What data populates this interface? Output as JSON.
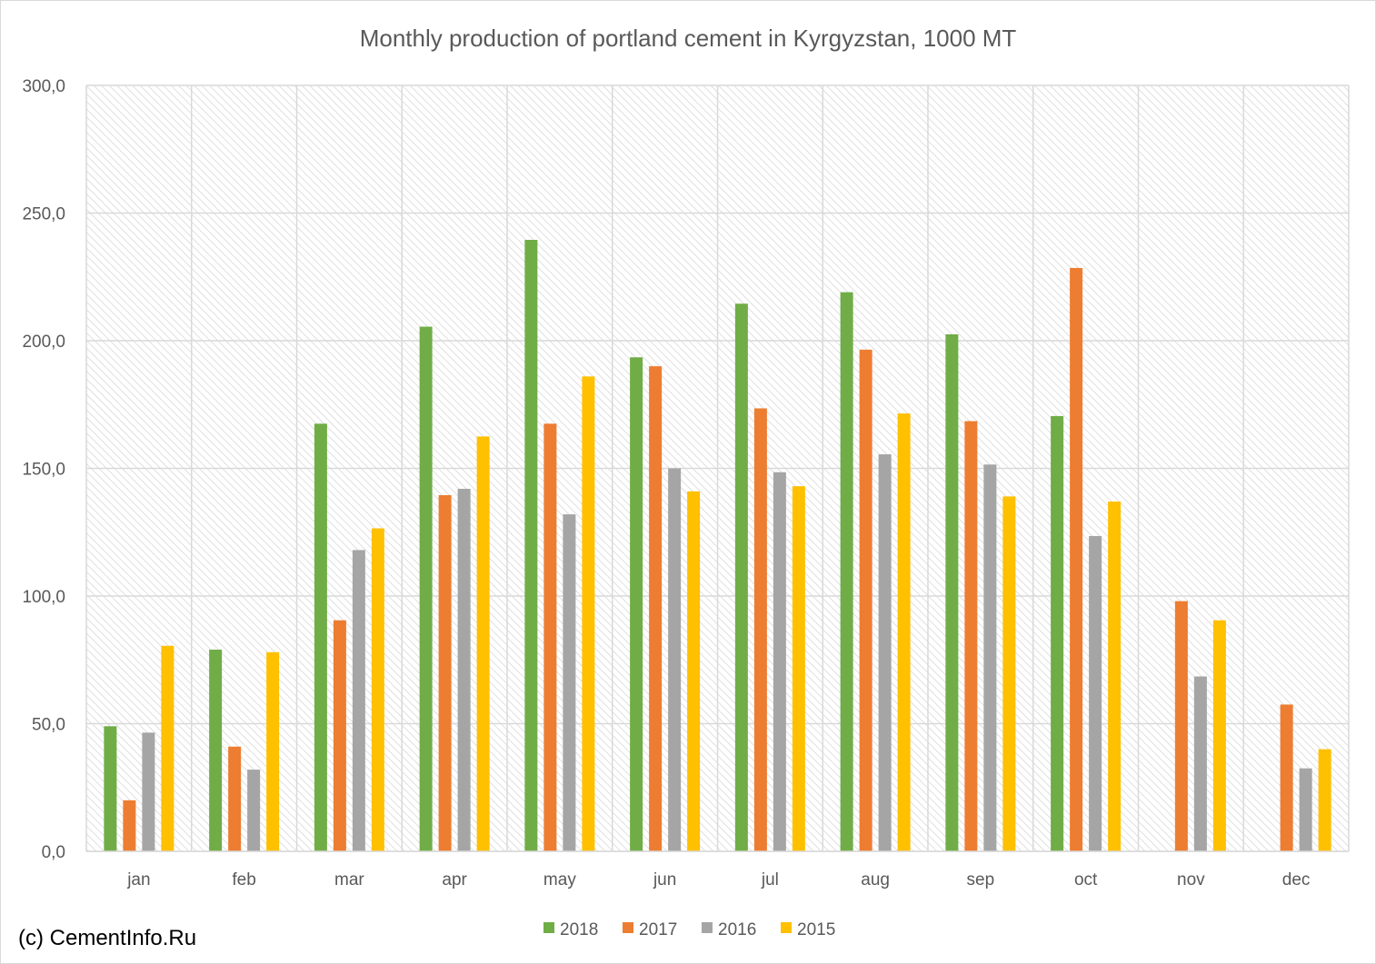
{
  "chart_data": {
    "type": "bar",
    "title": "Monthly production of portland cement in Kyrgyzstan, 1000 MT",
    "xlabel": "",
    "ylabel": "",
    "categories": [
      "jan",
      "feb",
      "mar",
      "apr",
      "may",
      "jun",
      "jul",
      "aug",
      "sep",
      "oct",
      "nov",
      "dec"
    ],
    "ylim": [
      0,
      300
    ],
    "yticks": [
      0,
      50,
      100,
      150,
      200,
      250,
      300
    ],
    "ytick_labels": [
      "0,0",
      "50,0",
      "100,0",
      "150,0",
      "200,0",
      "250,0",
      "300,0"
    ],
    "grid": true,
    "legend_position": "bottom",
    "series": [
      {
        "name": "2018",
        "color": "#70ad47",
        "values": [
          49,
          79,
          167.5,
          205.5,
          239.5,
          193.5,
          214.5,
          219,
          202.5,
          170.5,
          null,
          null
        ]
      },
      {
        "name": "2017",
        "color": "#ed7d31",
        "values": [
          20,
          41,
          90.5,
          139.5,
          167.5,
          190,
          173.5,
          196.5,
          168.5,
          228.5,
          98,
          57.5
        ]
      },
      {
        "name": "2016",
        "color": "#a5a5a5",
        "values": [
          46.5,
          32,
          118,
          142,
          132,
          150,
          148.5,
          155.5,
          151.5,
          123.5,
          68.5,
          32.5
        ]
      },
      {
        "name": "2015",
        "color": "#ffc000",
        "values": [
          80.5,
          78,
          126.5,
          162.5,
          186,
          141,
          143,
          171.5,
          139,
          137,
          90.5,
          40
        ]
      }
    ]
  },
  "credit": "(c) CementInfo.Ru"
}
